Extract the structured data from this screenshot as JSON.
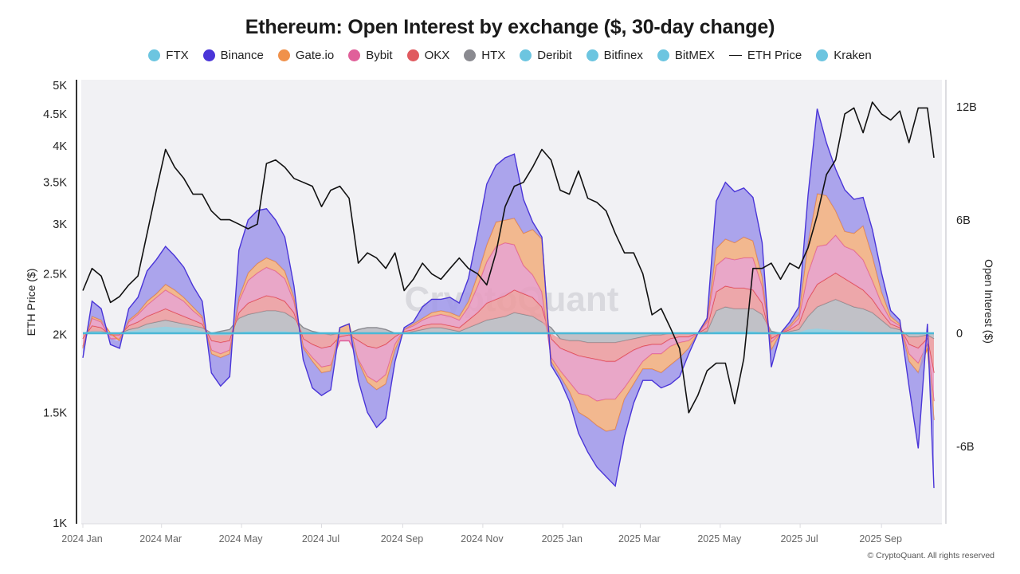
{
  "chart_data": {
    "type": "area",
    "title": "Ethereum: Open Interest by exchange ($, 30-day change)",
    "ylabel_left": "ETH Price ($)",
    "ylabel_right": "Open Interest ($)",
    "y_left_scale": "log",
    "y_left_range": [
      1000,
      5000
    ],
    "y_left_ticks": [
      "5K",
      "4.5K",
      "4K",
      "3.5K",
      "3K",
      "2.5K",
      "2K",
      "1.5K",
      "1K"
    ],
    "y_left_tick_values": [
      5000,
      4500,
      4000,
      3500,
      3000,
      2500,
      2000,
      1500,
      1000
    ],
    "y_right_range": [
      -10.1,
      13.4
    ],
    "y_right_ticks": [
      "12B",
      "6B",
      "0",
      "-6B"
    ],
    "y_right_tick_values": [
      12,
      6,
      0,
      -6
    ],
    "x_ticks": [
      "2024 Jan",
      "2024 Mar",
      "2024 May",
      "2024 Jul",
      "2024 Sep",
      "2024 Nov",
      "2025 Jan",
      "2025 Mar",
      "2025 May",
      "2025 Jul",
      "2025 Sep"
    ],
    "x_tick_days": [
      0,
      60,
      121,
      182,
      244,
      305,
      366,
      425,
      486,
      547,
      609
    ],
    "x_end_day": 649,
    "grid": false,
    "legend_position": "top",
    "watermark": "CryptoQuant",
    "legend": [
      {
        "name": "FTX",
        "color": "#6cc5e0",
        "marker": "dot"
      },
      {
        "name": "Binance",
        "color": "#4a35d8",
        "marker": "dot"
      },
      {
        "name": "Gate.io",
        "color": "#f0914b",
        "marker": "dot"
      },
      {
        "name": "Bybit",
        "color": "#e0609a",
        "marker": "dot"
      },
      {
        "name": "OKX",
        "color": "#e05a5f",
        "marker": "dot"
      },
      {
        "name": "HTX",
        "color": "#8a8a90",
        "marker": "dot"
      },
      {
        "name": "Deribit",
        "color": "#6cc5e0",
        "marker": "dot"
      },
      {
        "name": "Bitfinex",
        "color": "#6cc5e0",
        "marker": "dot"
      },
      {
        "name": "BitMEX",
        "color": "#6cc5e0",
        "marker": "dot"
      },
      {
        "name": "ETH Price",
        "color": "#111111",
        "marker": "line"
      },
      {
        "name": "Kraken",
        "color": "#6cc5e0",
        "marker": "dot"
      }
    ],
    "day": [
      0,
      7,
      14,
      21,
      28,
      35,
      42,
      49,
      56,
      63,
      70,
      77,
      84,
      91,
      98,
      105,
      112,
      119,
      126,
      133,
      140,
      147,
      154,
      161,
      168,
      175,
      182,
      189,
      196,
      203,
      210,
      217,
      224,
      231,
      238,
      245,
      252,
      259,
      266,
      273,
      280,
      287,
      294,
      301,
      308,
      315,
      322,
      329,
      336,
      343,
      350,
      357,
      364,
      371,
      378,
      385,
      392,
      399,
      406,
      413,
      420,
      427,
      434,
      441,
      448,
      455,
      462,
      469,
      476,
      483,
      490,
      497,
      504,
      511,
      518,
      525,
      532,
      539,
      546,
      553,
      560,
      567,
      574,
      581,
      588,
      595,
      602,
      609,
      616,
      623,
      630,
      637,
      644,
      649
    ],
    "eth_price": [
      2350,
      2550,
      2480,
      2250,
      2300,
      2400,
      2480,
      2900,
      3400,
      3950,
      3700,
      3550,
      3350,
      3350,
      3150,
      3050,
      3050,
      3000,
      2950,
      3000,
      3750,
      3800,
      3700,
      3550,
      3500,
      3450,
      3200,
      3400,
      3450,
      3300,
      2600,
      2700,
      2650,
      2550,
      2700,
      2350,
      2450,
      2600,
      2500,
      2450,
      2550,
      2650,
      2550,
      2500,
      2400,
      2700,
      3200,
      3450,
      3500,
      3700,
      3950,
      3800,
      3400,
      3350,
      3650,
      3300,
      3250,
      3150,
      2900,
      2700,
      2700,
      2500,
      2150,
      2200,
      2050,
      1900,
      1500,
      1600,
      1750,
      1800,
      1800,
      1550,
      1830,
      2550,
      2550,
      2600,
      2450,
      2600,
      2550,
      2750,
      3100,
      3600,
      3800,
      4500,
      4600,
      4200,
      4700,
      4500,
      4400,
      4550,
      4050,
      4600,
      4600,
      3830
    ],
    "series": [
      {
        "name": "HTX",
        "values": [
          0,
          0.1,
          0.1,
          0,
          0,
          0.2,
          0.3,
          0.5,
          0.6,
          0.7,
          0.6,
          0.5,
          0.4,
          0.3,
          0,
          0.1,
          0.2,
          0.8,
          1.0,
          1.1,
          1.2,
          1.2,
          1.1,
          0.8,
          0.3,
          0.1,
          0,
          -0.1,
          0,
          0,
          0.2,
          0.3,
          0.3,
          0.2,
          0,
          0,
          0.1,
          0.2,
          0.3,
          0.3,
          0.2,
          0.1,
          0.3,
          0.5,
          0.7,
          0.8,
          0.9,
          1.1,
          1.0,
          0.9,
          0.6,
          0.3,
          -0.3,
          -0.4,
          -0.4,
          -0.5,
          -0.5,
          -0.5,
          -0.5,
          -0.4,
          -0.3,
          -0.2,
          -0.1,
          -0.1,
          0,
          0,
          0,
          0,
          0.1,
          1.2,
          1.4,
          1.3,
          1.3,
          1.3,
          1.0,
          0.1,
          0,
          0.1,
          0.2,
          0.9,
          1.4,
          1.6,
          1.8,
          1.6,
          1.4,
          1.3,
          1.1,
          0.7,
          0.3,
          0.2,
          -0.2,
          -0.2,
          -0.1,
          -0.3
        ]
      },
      {
        "name": "OKX",
        "values": [
          -0.3,
          0.3,
          0.2,
          -0.1,
          -0.1,
          0.2,
          0.3,
          0.4,
          0.5,
          0.6,
          0.5,
          0.4,
          0.3,
          0.2,
          -0.4,
          -0.5,
          -0.4,
          0.3,
          0.6,
          0.7,
          0.8,
          0.7,
          0.6,
          0.3,
          -0.3,
          -0.6,
          -0.8,
          -0.6,
          -0.2,
          -0.1,
          -0.4,
          -0.7,
          -0.8,
          -0.6,
          -0.2,
          0.1,
          0.1,
          0.2,
          0.2,
          0.2,
          0.2,
          0.2,
          0.4,
          0.6,
          0.9,
          1.0,
          1.1,
          1.2,
          1.1,
          1.0,
          0.8,
          -0.3,
          -0.5,
          -0.6,
          -0.8,
          -0.8,
          -0.9,
          -1.0,
          -1.0,
          -0.8,
          -0.6,
          -0.5,
          -0.5,
          -0.5,
          -0.3,
          -0.2,
          -0.2,
          0,
          0.2,
          1.0,
          1.1,
          1.1,
          1.1,
          1.0,
          0.6,
          -0.3,
          0,
          0.1,
          0.3,
          0.9,
          1.2,
          1.3,
          1.4,
          1.3,
          1.2,
          1.0,
          0.7,
          0.4,
          0.2,
          0.1,
          -0.4,
          -0.6,
          -0.2,
          -1.8
        ]
      },
      {
        "name": "Bybit",
        "values": [
          -0.4,
          0.4,
          0.3,
          -0.2,
          -0.2,
          0.2,
          0.4,
          0.6,
          0.8,
          1.0,
          0.9,
          0.8,
          0.5,
          0.3,
          -0.5,
          -0.6,
          -0.5,
          0.6,
          1.2,
          1.4,
          1.5,
          1.4,
          1.2,
          0.6,
          -0.4,
          -0.7,
          -1.0,
          -1.0,
          -0.2,
          -0.3,
          -1.0,
          -1.6,
          -1.8,
          -1.6,
          -0.4,
          0.1,
          0.2,
          0.3,
          0.4,
          0.5,
          0.5,
          0.4,
          0.7,
          1.4,
          2.2,
          2.8,
          2.8,
          2.4,
          1.5,
          1.2,
          0.8,
          -1.0,
          -1.2,
          -1.6,
          -2.0,
          -2.0,
          -2.2,
          -2.0,
          -2.0,
          -1.7,
          -1.3,
          -0.8,
          -0.5,
          -0.5,
          -0.4,
          -0.3,
          -0.2,
          0,
          0.3,
          1.4,
          1.5,
          1.5,
          1.6,
          1.7,
          0.9,
          -0.2,
          0,
          0.1,
          0.3,
          1.4,
          2.0,
          1.8,
          2.0,
          1.7,
          1.8,
          1.6,
          1.0,
          0.5,
          0.2,
          0.1,
          -0.5,
          -0.8,
          -0.3,
          -1.5
        ]
      },
      {
        "name": "Gate.io",
        "values": [
          -0.1,
          0.1,
          0.1,
          0,
          -0.1,
          0.1,
          0.1,
          0.2,
          0.2,
          0.3,
          0.3,
          0.2,
          0.2,
          0.1,
          -0.2,
          -0.2,
          -0.2,
          0.2,
          0.4,
          0.5,
          0.5,
          0.5,
          0.4,
          0.2,
          -0.1,
          -0.2,
          -0.3,
          -0.3,
          0.3,
          0.5,
          -0.1,
          -0.3,
          -0.4,
          -0.5,
          -0.3,
          0,
          0.1,
          0.1,
          0.2,
          0.2,
          0.2,
          0.2,
          0.3,
          0.6,
          0.9,
          1.3,
          1.2,
          1.4,
          1.7,
          2.4,
          2.8,
          -0.2,
          -0.3,
          -0.5,
          -1.0,
          -1.2,
          -1.3,
          -1.7,
          -1.6,
          -0.6,
          -0.5,
          -0.4,
          -0.8,
          -1.0,
          -1.0,
          -0.8,
          -0.4,
          0,
          0.1,
          0.9,
          1.0,
          0.9,
          1.1,
          0.9,
          0.5,
          -0.4,
          0,
          0.1,
          0.2,
          1.6,
          2.8,
          2.6,
          1.3,
          0.8,
          0.9,
          1.8,
          1.3,
          0.6,
          0.2,
          0.1,
          -0.4,
          -0.5,
          -0.2,
          -1.0
        ]
      },
      {
        "name": "Binance",
        "values": [
          -0.5,
          0.8,
          0.6,
          -0.3,
          -0.4,
          0.6,
          0.8,
          1.6,
          1.8,
          2.0,
          1.8,
          1.6,
          1.1,
          0.8,
          -1.0,
          -1.5,
          -1.2,
          2.5,
          2.8,
          2.8,
          2.6,
          2.2,
          1.8,
          0.6,
          -0.6,
          -1.4,
          -1.2,
          -1.0,
          0,
          0,
          -1.0,
          -1.6,
          -2.0,
          -1.8,
          -0.6,
          0.1,
          0.1,
          0.6,
          0.7,
          0.6,
          0.8,
          0.7,
          1.2,
          2.2,
          3.2,
          3.0,
          3.3,
          3.4,
          1.8,
          0.4,
          0.1,
          -0.2,
          -0.2,
          -0.5,
          -1.1,
          -1.8,
          -2.2,
          -2.4,
          -3.0,
          -2.0,
          -1.0,
          -0.6,
          -0.6,
          -0.8,
          -1.0,
          -1.0,
          -0.3,
          0,
          0.1,
          2.5,
          3.0,
          2.7,
          2.6,
          2.3,
          1.8,
          -0.9,
          0,
          0.2,
          0.4,
          2.5,
          4.5,
          2.8,
          2.2,
          2.2,
          1.8,
          1.5,
          1.4,
          1.0,
          0.3,
          0.2,
          -1.3,
          -4.0,
          0.5,
          -3.6
        ]
      },
      {
        "name": "Deribit",
        "values": [
          0,
          0,
          0,
          0,
          0,
          0,
          0,
          0,
          0,
          0,
          0,
          0,
          0,
          0,
          0,
          0,
          0,
          0,
          0,
          0,
          0,
          0,
          0,
          0,
          0,
          0,
          0,
          0,
          0,
          0,
          0,
          0,
          0,
          0,
          0,
          0,
          0,
          0,
          0,
          0,
          0,
          0,
          0,
          0,
          0,
          0,
          0,
          0,
          0,
          0,
          0,
          0,
          0,
          0,
          0,
          0,
          0,
          0,
          0,
          0,
          0,
          0,
          0,
          0,
          0,
          0,
          0,
          0,
          0,
          0,
          0,
          0,
          0,
          0,
          0,
          0,
          0,
          0,
          0,
          0,
          0,
          0,
          0,
          0,
          0,
          0,
          0,
          0,
          0,
          0,
          0,
          0,
          0,
          0
        ]
      },
      {
        "name": "Kraken",
        "values": [
          0.05,
          0.1,
          0.1,
          -0.05,
          0,
          0.1,
          0.15,
          0.25,
          0.3,
          0.35,
          0.3,
          0.3,
          0.2,
          0.1,
          -0.1,
          -0.1,
          -0.1,
          0.05,
          0.1,
          0.1,
          0.1,
          0.1,
          0.1,
          0.05,
          0,
          -0.05,
          -0.05,
          0,
          0,
          0,
          0,
          0,
          0,
          0,
          0,
          0,
          0,
          0,
          0,
          0,
          0,
          0,
          0.05,
          0.05,
          0.1,
          0.1,
          0.1,
          0.1,
          0.05,
          0.05,
          0,
          0,
          0,
          0,
          0,
          0,
          0,
          0,
          0,
          0,
          0,
          0,
          0,
          0,
          0,
          0,
          0,
          0,
          0,
          0.1,
          0.1,
          0.1,
          0.1,
          0.1,
          0.05,
          0,
          0,
          0,
          0.05,
          0.2,
          0.25,
          0.2,
          0.15,
          0.15,
          0.1,
          0.1,
          0.05,
          0.05,
          0,
          0,
          0,
          -0.05,
          0,
          0
        ]
      }
    ]
  },
  "footer": {
    "copyright": "© CryptoQuant. All rights reserved"
  }
}
